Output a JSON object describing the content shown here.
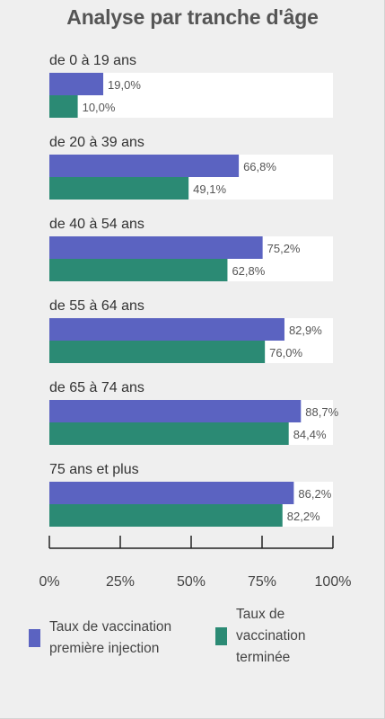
{
  "chart_data": {
    "type": "bar",
    "orientation": "horizontal",
    "title": "Analyse par tranche d'âge",
    "categories": [
      "de 0 à 19 ans",
      "de 20 à 39 ans",
      "de 40 à 54 ans",
      "de 55 à 64 ans",
      "de 65 à 74 ans",
      "75 ans et plus"
    ],
    "series": [
      {
        "name": "Taux de vaccination première injection",
        "color": "#5b63c1",
        "values": [
          19.0,
          66.8,
          75.2,
          82.9,
          88.7,
          86.2
        ],
        "labels": [
          "19,0%",
          "66,8%",
          "75,2%",
          "82,9%",
          "88,7%",
          "86,2%"
        ]
      },
      {
        "name": "Taux de vaccination terminée",
        "color": "#2b8a74",
        "values": [
          10.0,
          49.1,
          62.8,
          76.0,
          84.4,
          82.2
        ],
        "labels": [
          "10,0%",
          "49,1%",
          "62,8%",
          "76,0%",
          "84,4%",
          "82,2%"
        ]
      }
    ],
    "xlim": [
      0,
      100
    ],
    "xticks": [
      "0%",
      "25%",
      "50%",
      "75%",
      "100%"
    ],
    "legend_position": "bottom",
    "grid": false
  }
}
